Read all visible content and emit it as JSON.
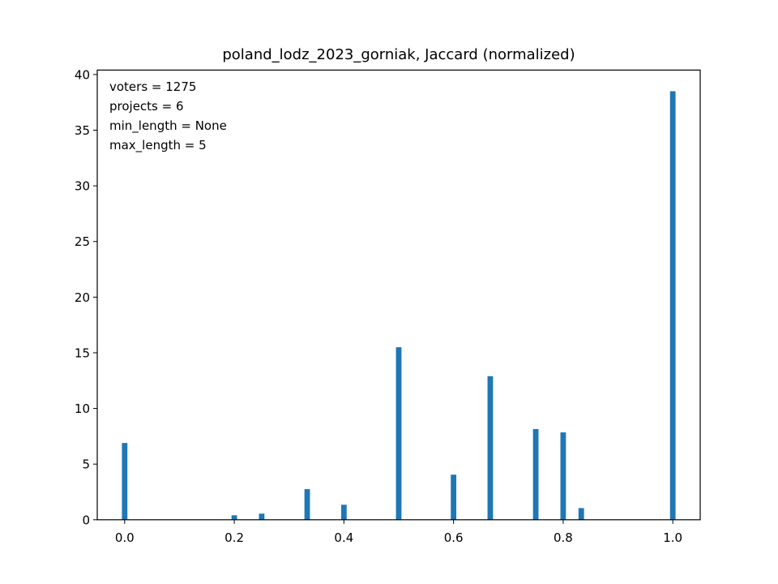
{
  "chart_data": {
    "type": "bar",
    "title": "poland_lodz_2023_gorniak, Jaccard (normalized)",
    "xlabel": "",
    "ylabel": "",
    "xlim": [
      -0.05,
      1.05
    ],
    "ylim": [
      0,
      40.4
    ],
    "x_ticks": [
      0.0,
      0.2,
      0.4,
      0.6,
      0.8,
      1.0
    ],
    "x_tick_labels": [
      "0.0",
      "0.2",
      "0.4",
      "0.6",
      "0.8",
      "1.0"
    ],
    "y_ticks": [
      0,
      5,
      10,
      15,
      20,
      25,
      30,
      35,
      40
    ],
    "y_tick_labels": [
      "0",
      "5",
      "10",
      "15",
      "20",
      "25",
      "30",
      "35",
      "40"
    ],
    "bar_color": "#1f77b4",
    "grid": false,
    "bars": [
      {
        "x": 0.0,
        "value": 6.9
      },
      {
        "x": 0.2,
        "value": 0.4
      },
      {
        "x": 0.25,
        "value": 0.55
      },
      {
        "x": 0.333,
        "value": 2.75
      },
      {
        "x": 0.4,
        "value": 1.35
      },
      {
        "x": 0.5,
        "value": 15.5
      },
      {
        "x": 0.6,
        "value": 4.05
      },
      {
        "x": 0.667,
        "value": 12.9
      },
      {
        "x": 0.75,
        "value": 8.15
      },
      {
        "x": 0.8,
        "value": 7.85
      },
      {
        "x": 0.833,
        "value": 1.05
      },
      {
        "x": 1.0,
        "value": 38.5
      }
    ],
    "annotation_lines": [
      "voters = 1275",
      "projects = 6",
      "min_length = None",
      "max_length = 5"
    ]
  }
}
